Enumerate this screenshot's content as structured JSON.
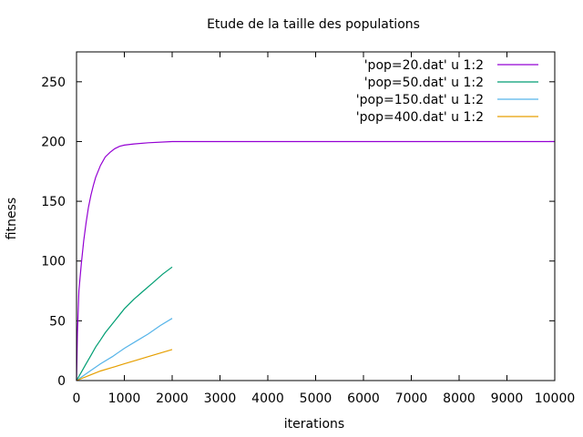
{
  "chart_data": {
    "type": "line",
    "title": "Etude de la taille des populations",
    "xlabel": "iterations",
    "ylabel": "fitness",
    "xlim": [
      0,
      10000
    ],
    "ylim": [
      0,
      275
    ],
    "x_ticks": [
      0,
      1000,
      2000,
      3000,
      4000,
      5000,
      6000,
      7000,
      8000,
      9000,
      10000
    ],
    "y_ticks": [
      0,
      50,
      100,
      150,
      200,
      250
    ],
    "grid": false,
    "legend_position": "top-right",
    "series": [
      {
        "name": "'pop=20.dat' u 1:2",
        "color": "#9400d3",
        "x": [
          0,
          20,
          50,
          100,
          150,
          200,
          250,
          300,
          350,
          400,
          500,
          600,
          700,
          800,
          900,
          1000,
          1200,
          1500,
          2000,
          3000,
          5000,
          7500,
          10000
        ],
        "y": [
          0,
          40,
          75,
          98,
          117,
          132,
          145,
          155,
          163,
          170,
          180,
          187,
          191,
          194,
          196,
          197,
          198,
          199,
          200,
          200,
          200,
          200,
          200
        ]
      },
      {
        "name": "'pop=50.dat' u 1:2",
        "color": "#009e73",
        "x": [
          0,
          100,
          200,
          300,
          400,
          500,
          600,
          800,
          1000,
          1200,
          1400,
          1600,
          1800,
          2000
        ],
        "y": [
          0,
          7,
          14,
          21,
          28,
          34,
          40,
          50,
          60,
          68,
          75,
          82,
          89,
          95
        ]
      },
      {
        "name": "'pop=150.dat' u 1:2",
        "color": "#56b4e9",
        "x": [
          0,
          250,
          500,
          750,
          1000,
          1250,
          1500,
          1750,
          2000
        ],
        "y": [
          0,
          7,
          14,
          20,
          27,
          33,
          39,
          46,
          52
        ]
      },
      {
        "name": "'pop=400.dat' u 1:2",
        "color": "#e69f00",
        "x": [
          0,
          250,
          500,
          750,
          1000,
          1250,
          1500,
          1750,
          2000
        ],
        "y": [
          0,
          4,
          8,
          11,
          14,
          17,
          20,
          23,
          26
        ]
      }
    ]
  }
}
